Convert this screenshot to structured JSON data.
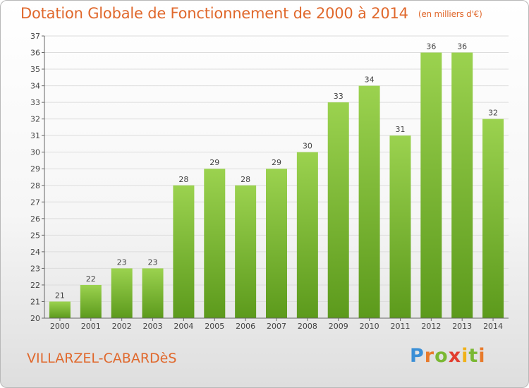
{
  "title": "Dotation Globale de Fonctionnement de 2000 à 2014",
  "subtitle": "(en milliers d'€)",
  "city": "VILLARZEL-CABARDèS",
  "logo": {
    "text": "Proxiti",
    "letters": [
      "P",
      "r",
      "o",
      "x",
      "i",
      "t",
      "i"
    ]
  },
  "colors": {
    "title": "#e0682c",
    "bar_top": "#9bd24f",
    "bar_bottom": "#5c9a1c",
    "axis": "#666666",
    "grid": "#dddddd"
  },
  "chart_data": {
    "type": "bar",
    "title": "Dotation Globale de Fonctionnement de 2000 à 2014",
    "subtitle": "(en milliers d'€)",
    "xlabel": "",
    "ylabel": "",
    "categories": [
      "2000",
      "2001",
      "2002",
      "2003",
      "2004",
      "2005",
      "2006",
      "2007",
      "2008",
      "2009",
      "2010",
      "2011",
      "2012",
      "2013",
      "2014"
    ],
    "values": [
      21,
      22,
      23,
      23,
      28,
      29,
      28,
      29,
      30,
      33,
      34,
      31,
      36,
      36,
      32
    ],
    "ylim": [
      20,
      37
    ],
    "yticks": [
      20,
      21,
      22,
      23,
      24,
      25,
      26,
      27,
      28,
      29,
      30,
      31,
      32,
      33,
      34,
      35,
      36,
      37
    ],
    "grid": true,
    "legend": "none"
  }
}
